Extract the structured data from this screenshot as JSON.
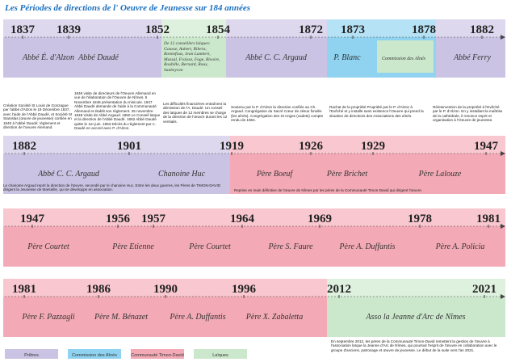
{
  "title": "Les Périodes de directions de l' Oeuvre de Jeunesse sur 184 années",
  "rows": [
    {
      "years": [
        "1837",
        "1839",
        "1852",
        "1854",
        "1872",
        "1873",
        "1878",
        "1882"
      ],
      "segments": [
        {
          "color": "#cbc3e3"
        },
        {
          "color": "#cce8cc"
        },
        {
          "color": "#cbc3e3"
        },
        {
          "color": "#8fd3f0"
        },
        {
          "color": "#cbc3e3"
        }
      ],
      "names": [
        "Abbé É. d'Alzon",
        "Abbé Daudé",
        "De 12 conseillers laïques: Gausse, Aubert, Ribera, Bonnefous, Jean Lambert, Massal, Fraisse, Fage, Rivoire, Roubille, Bernard, Roux, Saubeyran",
        "Abbé C. C. Argaud",
        "P. Blanc",
        "Commission des Aînés",
        "Abbé Ferry"
      ],
      "notes": [
        "Création Société St Louis de Gonzague par l'abbé d'Alzon le 19 Décembre 1837, avec l'aide de l'Abbé Daudé, et Société St Stanislas (œuvre de jeunesse) confiée en 1840 à l'abbé Daudé; règlement et direction de l'oeuvre Alemand.",
        "1846 visite de directeurs de l'Oeuvre Allemand en vue de l'élaboration de l'Oeuvre de Nîmes. 5 Novembre 1846 présentation du minicule. 1847 Abbé Daudé demande de l'aide à la Communauté Allemand et établit son règlement. 25 novembre 1848 Visite de Abbé Argaud. 1850 Le Conseil laïque et la direction de l'Abbé Daudé. 1852 Abbé Daudé quitte le 1er juin. 1853 Décès du règlement par A. Daudé en accord avec P. d'Alzon.",
        "Les difficultés financières entraînent la démission de l'A. Daudé. Un conseil des laïques de 12 membres se charge de la direction de l'œuvre durant les 12 ventiaiis.",
        "Soutenu par le P. d'Alzon la direction confiée au Ch. Argaud. Congrégation du Sacré Cœur de Jésus fondée (les aînés). Congrégation des St Anges (cadets) compte rendu de 1864.",
        "Rachat de la propriété Propriété par le P. d'Alzon à l'Evêché et y installe sans existence l'Oeuvre qui prend la situation de directions des Associations des aînés.",
        "Réintervention de la propriété à l'Evêché par le P. d'Alzon. En y installant la maîtrise de la cathédrale, il renonce esprit et organisation à l'Oeuvre de jeunesse."
      ]
    },
    {
      "years": [
        "1882",
        "1901",
        "1919",
        "1926",
        "1929",
        "1947"
      ],
      "segments": [
        {
          "color": "#cbc3e3"
        },
        {
          "color": "#f4aab6"
        }
      ],
      "names": [
        "Abbé C. C. Argaud",
        "Chanoine Huc",
        "Père Boeuf",
        "Père Brichet",
        "Père Lalouze"
      ],
      "notes": [
        "Le chanoine Argaud reprit la direction de l'œuvre, secondé par le chanoine Huc. Entre les deux guerres, les Pères de TIMON-DAVID dirigent la Jeunesse de Marseille, qui se développe en association.",
        "Reprise en main définitive de l'œuvre de Nîmes par les pères de la Communauté Timon-David qui dirigent l'œuvre."
      ]
    },
    {
      "years": [
        "1947",
        "1956",
        "1957",
        "1964",
        "1969",
        "1978",
        "1981"
      ],
      "segments": [
        {
          "color": "#f4aab6"
        }
      ],
      "names": [
        "Père Courtet",
        "Père Etienne",
        "Père Courtet",
        "Père S. Faure",
        "Père A. Duffantis",
        "Père A. Policia"
      ],
      "notes": []
    },
    {
      "years": [
        "1981",
        "1986",
        "1990",
        "1996",
        "2012",
        "2021"
      ],
      "segments": [
        {
          "color": "#f4aab6"
        },
        {
          "color": "#cce8cc"
        }
      ],
      "names": [
        "Père F. Pazzagli",
        "Père M. Bénazet",
        "Père A. Duffantis",
        "Père X. Zabaletta",
        "Asso la Jeanne d'Arc de Nîmes"
      ],
      "notes": [
        "En septembre 2012, les pères de la Communauté Timon-David remettent la gestion de l'œuvre à l'association laïque la Jeanne d'Arc de Nîmes, qui poursuit l'esprit de l'œuvre en collaboration avec le groupe d'anciens, patronage et œuvre de jeunesse. Le début de la suite vers l'an 2021."
      ]
    }
  ],
  "legend": [
    {
      "label": "Prêtres",
      "color": "#cbc3e3"
    },
    {
      "label": "Commission des Aînés",
      "color": "#8fd3f0"
    },
    {
      "label": "Communauté Timon-David",
      "color": "#f4aab6"
    },
    {
      "label": "Laïques",
      "color": "#cce8cc"
    }
  ]
}
